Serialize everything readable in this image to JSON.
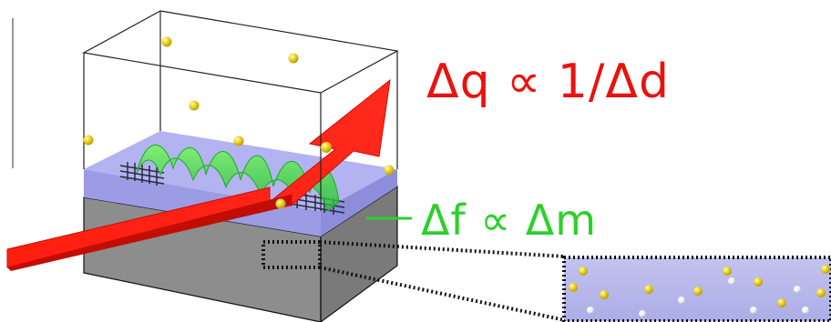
{
  "labels": {
    "charge_relation": "Δq ∝ 1/Δd",
    "mass_relation": "Δf ∝ Δm"
  },
  "colors": {
    "charge_text": "#e8130f",
    "mass_text": "#2dd02b",
    "arrow_fill": "#ff1a0d",
    "wave": "#39d23a",
    "substrate": "#8f8f8f",
    "film": "#a9a9f0",
    "particle_gold": "#f2d81e",
    "particle_white": "#ffffff"
  },
  "icons": {
    "main_arrow": "arrow-icon",
    "magnify_box": "dotted-rectangle",
    "particles": "sphere-icon"
  }
}
